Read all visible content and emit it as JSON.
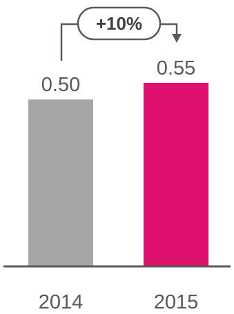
{
  "chart_data": {
    "type": "bar",
    "categories": [
      "2014",
      "2015"
    ],
    "values": [
      0.5,
      0.55
    ],
    "value_labels": [
      "0.50",
      "0.55"
    ],
    "bar_colors": [
      "#a6a6a6",
      "#e0116e"
    ],
    "change_annotation": "+10%",
    "ylim": [
      0,
      0.55
    ],
    "grid": false
  }
}
